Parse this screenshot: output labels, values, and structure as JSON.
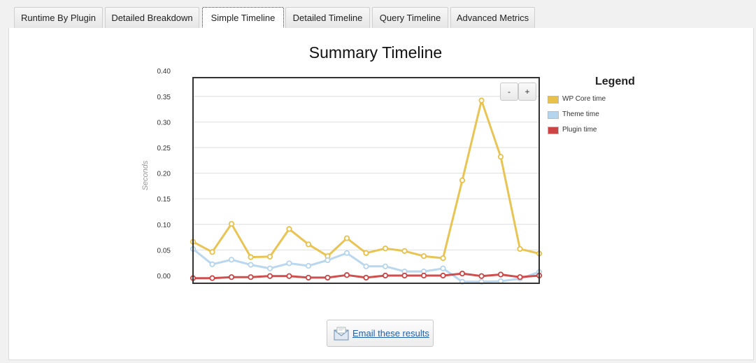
{
  "tabs": [
    {
      "label": "Runtime By Plugin"
    },
    {
      "label": "Detailed Breakdown"
    },
    {
      "label": "Simple Timeline",
      "active": true
    },
    {
      "label": "Detailed Timeline"
    },
    {
      "label": "Query Timeline"
    },
    {
      "label": "Advanced Metrics"
    }
  ],
  "zoom": {
    "out_label": "-",
    "in_label": "+"
  },
  "legend": {
    "title": "Legend"
  },
  "email": {
    "label": "Email these results",
    "icon": "envelope-icon"
  },
  "chart_data": {
    "type": "line",
    "title": "Summary Timeline",
    "ylabel": "Seconds",
    "xlabel": "",
    "ylim": [
      -0.015,
      0.4
    ],
    "yticks": [
      "0.40",
      "0.35",
      "0.30",
      "0.25",
      "0.20",
      "0.15",
      "0.10",
      "0.05",
      "0.00"
    ],
    "grid": true,
    "legend_position": "right",
    "x": [
      1,
      2,
      3,
      4,
      5,
      6,
      7,
      8,
      9,
      10,
      11,
      12,
      13,
      14,
      15,
      16,
      17,
      18,
      19
    ],
    "series": [
      {
        "name": "WP Core time",
        "color": "#e8c14a",
        "values": [
          0.066,
          0.046,
          0.101,
          0.036,
          0.037,
          0.091,
          0.061,
          0.038,
          0.073,
          0.044,
          0.053,
          0.048,
          0.038,
          0.034,
          0.186,
          0.342,
          0.232,
          0.052,
          0.043
        ]
      },
      {
        "name": "Theme time",
        "color": "#b5d5ee",
        "values": [
          0.052,
          0.022,
          0.031,
          0.021,
          0.014,
          0.024,
          0.019,
          0.03,
          0.044,
          0.018,
          0.018,
          0.008,
          0.008,
          0.014,
          -0.012,
          -0.012,
          -0.011,
          -0.006,
          0.007
        ]
      },
      {
        "name": "Plugin time",
        "color": "#cc4444",
        "values": [
          -0.005,
          -0.005,
          -0.003,
          -0.003,
          -0.001,
          -0.001,
          -0.004,
          -0.004,
          0.001,
          -0.004,
          0.0,
          0.0,
          0.0,
          0.0,
          0.004,
          -0.001,
          0.002,
          -0.003,
          0.0
        ]
      }
    ]
  }
}
